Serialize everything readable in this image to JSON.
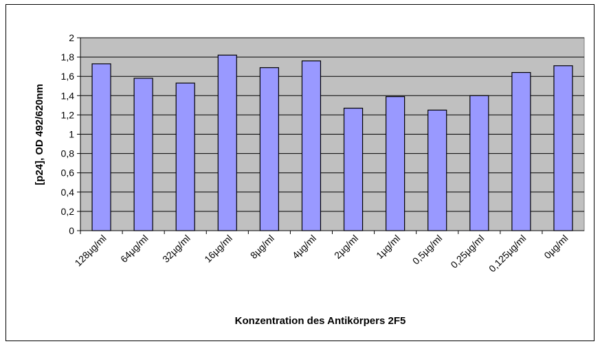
{
  "chart_data": {
    "type": "bar",
    "xlabel": "Konzentration des Antikörpers 2F5",
    "ylabel": "[p24], OD 492/620nm",
    "categories": [
      "128µg/ml",
      "64µg/ml",
      "32µg/ml",
      "16µg/ml",
      "8µg/ml",
      "4µg/ml",
      "2µg/ml",
      "1µg/ml",
      "0,5µg/ml",
      "0,25µg/ml",
      "0,125µg/ml",
      "0µg/ml"
    ],
    "values": [
      1.73,
      1.58,
      1.53,
      1.82,
      1.69,
      1.76,
      1.27,
      1.39,
      1.25,
      1.4,
      1.64,
      1.71
    ],
    "color": "#9999ff",
    "ylim": [
      0,
      2
    ],
    "yticks": [
      0,
      {
        "value": 0.2,
        "label": "0,2"
      },
      {
        "value": 0.4,
        "label": "0,4"
      },
      {
        "value": 0.6,
        "label": "0,6"
      },
      {
        "value": 0.8,
        "label": "0,8"
      },
      1,
      {
        "value": 1.2,
        "label": "1,2"
      },
      {
        "value": 1.4,
        "label": "1,4"
      },
      {
        "value": 1.6,
        "label": "1,6"
      },
      {
        "value": 1.8,
        "label": "1,8"
      },
      2
    ],
    "grid": true
  }
}
